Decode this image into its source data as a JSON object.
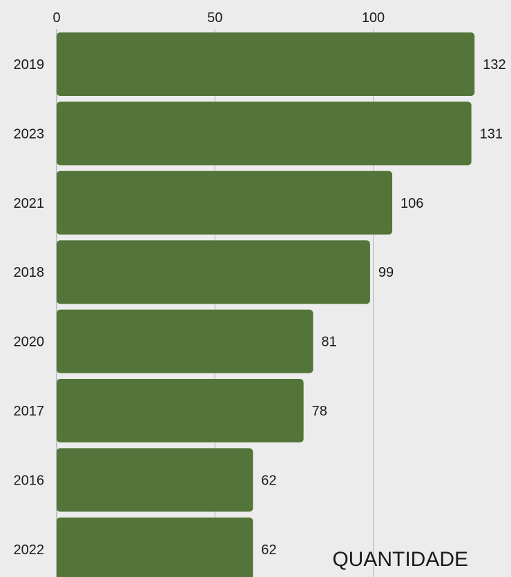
{
  "chart_data": {
    "type": "bar",
    "orientation": "horizontal",
    "categories": [
      "2019",
      "2023",
      "2021",
      "2018",
      "2020",
      "2017",
      "2016",
      "2022"
    ],
    "values": [
      132,
      131,
      106,
      99,
      81,
      78,
      62,
      62
    ],
    "xlabel": "QUANTIDADE",
    "ylabel": "",
    "xlim": [
      0,
      132
    ],
    "x_ticks": [
      "0",
      "50",
      "100"
    ],
    "grid": true,
    "bar_color": "#54753a",
    "background": "#ececec"
  }
}
